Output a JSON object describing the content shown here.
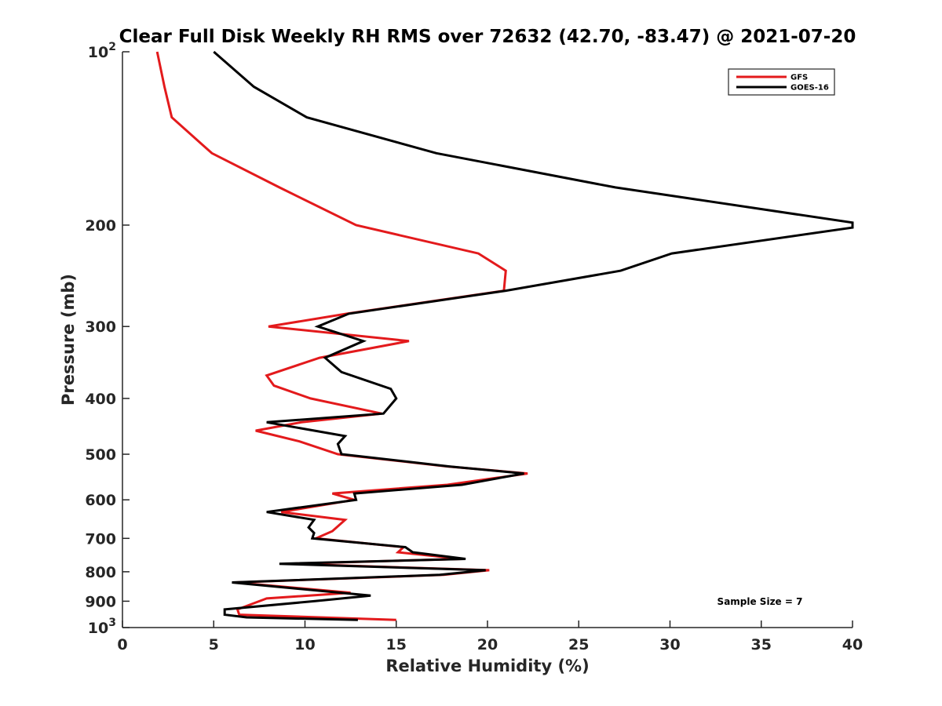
{
  "chart_data": {
    "type": "line",
    "title": "Clear Full Disk Weekly RH RMS over 72632 (42.70, -83.47) @ 2021-07-20",
    "xlabel": "Relative Humidity (%)",
    "ylabel": "Pressure (mb)",
    "xlim": [
      0,
      40
    ],
    "ylim": [
      100,
      1000
    ],
    "yscale": "log",
    "y_reversed": true,
    "grid": false,
    "legend_position": "top-right",
    "xticks": [
      0,
      5,
      10,
      15,
      20,
      25,
      30,
      35,
      40
    ],
    "xtick_labels": [
      "0",
      "5",
      "10",
      "15",
      "20",
      "25",
      "30",
      "35",
      "40"
    ],
    "yticks": [
      200,
      300,
      400,
      500,
      600,
      700,
      800,
      900
    ],
    "ytick_labels": [
      "200",
      "300",
      "400",
      "500",
      "600",
      "700",
      "800",
      "900"
    ],
    "ytick_decades": [
      {
        "value": 100,
        "base": "10",
        "exp": "2"
      },
      {
        "value": 1000,
        "base": "10",
        "exp": "3"
      }
    ],
    "annotation": "Sample Size = 7",
    "series": [
      {
        "name": "GFS",
        "color": "#e31a1c",
        "points": [
          [
            1.9,
            100
          ],
          [
            2.3,
            115
          ],
          [
            2.7,
            130
          ],
          [
            4.9,
            150
          ],
          [
            8.6,
            172
          ],
          [
            12.8,
            200
          ],
          [
            19.5,
            224
          ],
          [
            21.0,
            240
          ],
          [
            20.9,
            260
          ],
          [
            12.3,
            285
          ],
          [
            8.0,
            300
          ],
          [
            15.7,
            318
          ],
          [
            10.8,
            340
          ],
          [
            7.9,
            365
          ],
          [
            8.3,
            380
          ],
          [
            10.3,
            400
          ],
          [
            14.2,
            425
          ],
          [
            9.8,
            440
          ],
          [
            7.3,
            455
          ],
          [
            9.7,
            475
          ],
          [
            11.8,
            500
          ],
          [
            17.8,
            525
          ],
          [
            22.2,
            540
          ],
          [
            17.8,
            565
          ],
          [
            11.5,
            585
          ],
          [
            12.7,
            600
          ],
          [
            8.7,
            630
          ],
          [
            12.2,
            650
          ],
          [
            11.5,
            680
          ],
          [
            10.6,
            700
          ],
          [
            15.4,
            725
          ],
          [
            15.1,
            740
          ],
          [
            18.6,
            760
          ],
          [
            9.1,
            775
          ],
          [
            20.1,
            795
          ],
          [
            17.6,
            810
          ],
          [
            6.2,
            835
          ],
          [
            12.5,
            870
          ],
          [
            7.9,
            890
          ],
          [
            6.3,
            930
          ],
          [
            6.4,
            950
          ],
          [
            15.0,
            970
          ]
        ]
      },
      {
        "name": "GOES-16",
        "color": "#000000",
        "points": [
          [
            5.0,
            100
          ],
          [
            7.2,
            115
          ],
          [
            10.1,
            130
          ],
          [
            17.2,
            150
          ],
          [
            27.0,
            172
          ],
          [
            40.0,
            198
          ],
          [
            40.0,
            202
          ],
          [
            30.1,
            224
          ],
          [
            27.3,
            240
          ],
          [
            21.0,
            260
          ],
          [
            12.4,
            285
          ],
          [
            10.7,
            300
          ],
          [
            13.2,
            318
          ],
          [
            11.1,
            340
          ],
          [
            12.0,
            360
          ],
          [
            14.7,
            385
          ],
          [
            15.0,
            400
          ],
          [
            14.3,
            425
          ],
          [
            7.9,
            440
          ],
          [
            12.2,
            465
          ],
          [
            11.8,
            480
          ],
          [
            12.0,
            500
          ],
          [
            17.9,
            525
          ],
          [
            22.0,
            540
          ],
          [
            18.6,
            565
          ],
          [
            12.7,
            585
          ],
          [
            12.8,
            600
          ],
          [
            7.9,
            630
          ],
          [
            10.5,
            650
          ],
          [
            10.2,
            670
          ],
          [
            10.5,
            685
          ],
          [
            10.4,
            700
          ],
          [
            15.5,
            725
          ],
          [
            15.9,
            740
          ],
          [
            18.8,
            760
          ],
          [
            8.6,
            775
          ],
          [
            19.9,
            795
          ],
          [
            17.4,
            810
          ],
          [
            6.0,
            835
          ],
          [
            13.6,
            880
          ],
          [
            10.5,
            900
          ],
          [
            5.6,
            930
          ],
          [
            5.6,
            950
          ],
          [
            6.8,
            960
          ],
          [
            12.9,
            970
          ]
        ]
      }
    ]
  }
}
